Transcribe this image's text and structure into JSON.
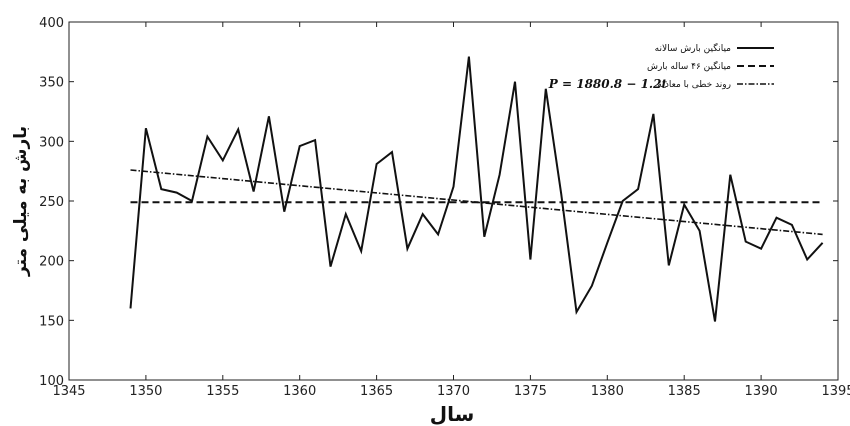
{
  "chart_data": {
    "type": "line",
    "xlabel": "سال",
    "ylabel": "بارش به میلی متر",
    "xlim": [
      1345,
      1395
    ],
    "ylim": [
      100,
      400
    ],
    "xticks": [
      1345,
      1350,
      1355,
      1360,
      1365,
      1370,
      1375,
      1380,
      1385,
      1390,
      1395
    ],
    "yticks": [
      100,
      150,
      200,
      250,
      300,
      350,
      400
    ],
    "grid": false,
    "legend_position": "top-right",
    "series": [
      {
        "name": "میانگین بارش سالانه",
        "style": "solid",
        "x": [
          1349,
          1350,
          1351,
          1352,
          1353,
          1354,
          1355,
          1356,
          1357,
          1358,
          1359,
          1360,
          1361,
          1362,
          1363,
          1364,
          1365,
          1366,
          1367,
          1368,
          1369,
          1370,
          1371,
          1372,
          1373,
          1374,
          1375,
          1376,
          1377,
          1378,
          1379,
          1380,
          1381,
          1382,
          1383,
          1384,
          1385,
          1386,
          1387,
          1388,
          1389,
          1390,
          1391,
          1392,
          1393,
          1394
        ],
        "values": [
          160,
          311,
          260,
          257,
          250,
          304,
          284,
          310,
          258,
          321,
          241,
          296,
          301,
          195,
          239,
          208,
          281,
          291,
          210,
          239,
          222,
          262,
          371,
          220,
          272,
          350,
          201,
          344,
          256,
          157,
          179,
          215,
          250,
          260,
          323,
          196,
          247,
          225,
          149,
          272,
          216,
          210,
          236,
          230,
          201,
          215
        ]
      },
      {
        "name": "میانگین ۴۶ ساله بارش",
        "style": "dashed",
        "x": [
          1349,
          1394
        ],
        "values": [
          249,
          249
        ]
      },
      {
        "name": "روند خطی با معادله",
        "style": "dash-dot",
        "x": [
          1349,
          1394
        ],
        "values": [
          276,
          222
        ]
      }
    ],
    "equation": "P = 1880.8 − 1.2t"
  }
}
